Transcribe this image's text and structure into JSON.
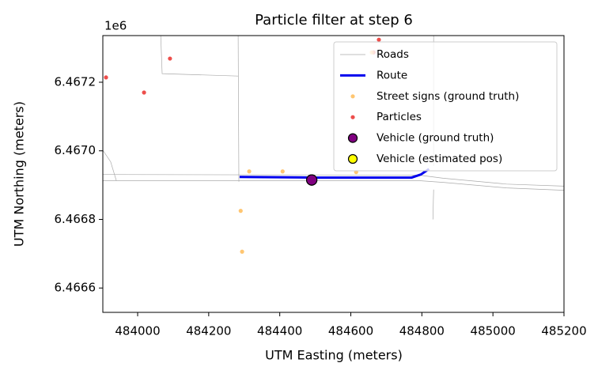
{
  "chart_data": {
    "type": "scatter",
    "title": "Particle filter at step 6",
    "xlabel": "UTM Easting (meters)",
    "ylabel": "UTM Northing (meters)",
    "y_offset_text": "1e6",
    "xlim": [
      483902,
      485200
    ],
    "ylim": [
      6466529,
      6467336
    ],
    "xticks": [
      484000,
      484200,
      484400,
      484600,
      484800,
      485000,
      485200
    ],
    "yticks": [
      {
        "value": 6466600,
        "label": "6.4666"
      },
      {
        "value": 6466800,
        "label": "6.4668"
      },
      {
        "value": 6467000,
        "label": "6.4670"
      },
      {
        "value": 6467200,
        "label": "6.4672"
      }
    ],
    "legend": "upper right",
    "series": [
      {
        "name": "Roads",
        "color": "#aaaaaa",
        "mode": "line",
        "x": [
          483902,
          484793,
          484860,
          485038,
          485200,
          null,
          483902,
          484793,
          484860,
          485038,
          485200,
          null,
          484283,
          484285,
          null,
          484065,
          484069,
          484283,
          null,
          483902,
          483924,
          483940,
          null,
          484833,
          484833,
          null,
          484833,
          484831
        ],
        "y": [
          6466931,
          6466929,
          6466920,
          6466903,
          6466897,
          null,
          6466913,
          6466913,
          6466908,
          6466892,
          6466885,
          null,
          6467336,
          6466910,
          null,
          6467336,
          6467225,
          6467218,
          null,
          6467002,
          6466968,
          6466913,
          null,
          6467336,
          6466956,
          null,
          6466887,
          6466800
        ]
      },
      {
        "name": "Route",
        "color": "#0000ee",
        "mode": "line",
        "x": [
          484287,
          484503,
          484771,
          484797,
          484820
        ],
        "y": [
          6466924,
          6466922,
          6466922,
          6466931,
          6466947
        ]
      },
      {
        "name": "Street signs (ground truth)",
        "color": "#ffb84d",
        "mode": "markers",
        "x": [
          484314,
          484408,
          484290,
          484294,
          484615,
          484659
        ],
        "y": [
          6466940,
          6466940,
          6466825,
          6466706,
          6466938,
          6467287
        ]
      },
      {
        "name": "Particles",
        "color": "#e8221e",
        "mode": "markers",
        "x": [
          483911,
          484018,
          484091,
          484679,
          484664
        ],
        "y": [
          6467214,
          6467170,
          6467269,
          6467324,
          6467287
        ]
      },
      {
        "name": "Vehicle (ground truth)",
        "color": "#800080",
        "mode": "vehicle",
        "x": [
          484490
        ],
        "y": [
          6466915
        ]
      },
      {
        "name": "Vehicle (estimated pos)",
        "color": "#ffff00",
        "mode": "vehicle",
        "x": [
          484490
        ],
        "y": [
          6466915
        ]
      }
    ]
  }
}
